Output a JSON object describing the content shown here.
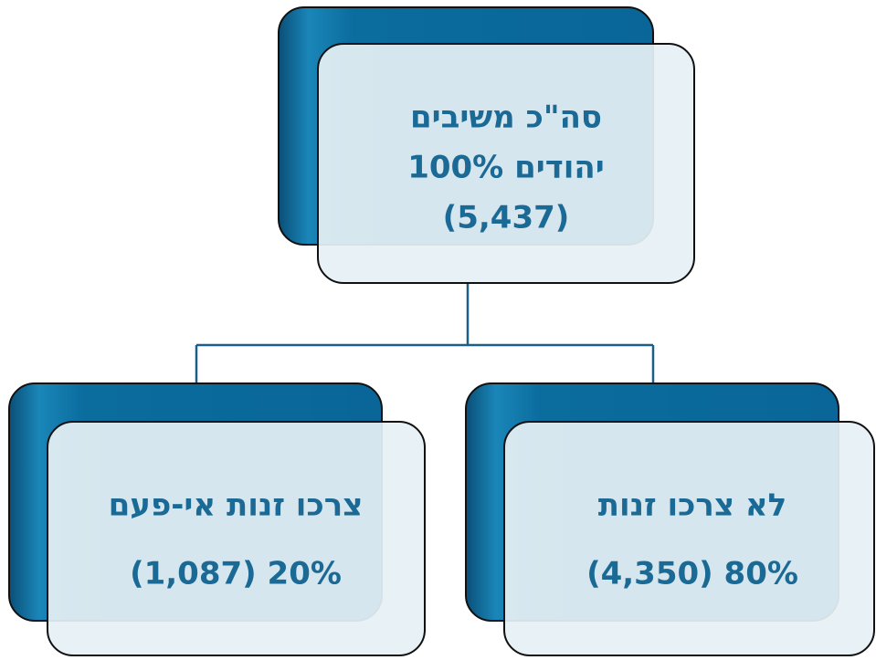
{
  "nodes": [
    {
      "lines": [
        "סה\"כ משיבים",
        "יהודים 100%",
        "(5,437)"
      ]
    },
    {
      "lines": [
        "צרכו זנות אי-פעם",
        "20% (1,087)"
      ]
    },
    {
      "lines": [
        "לא צרכו זנות",
        "80% (4,350)"
      ]
    }
  ]
}
